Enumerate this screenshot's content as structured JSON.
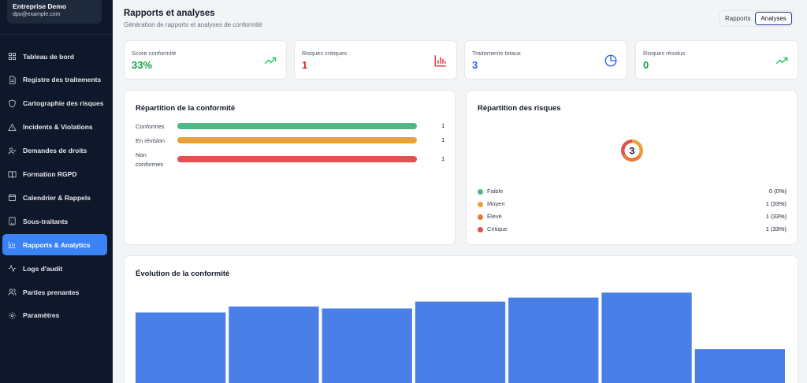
{
  "sidebar": {
    "org_name": "Entreprise Demo",
    "org_email": "dpo@example.com",
    "items": [
      {
        "label": "Tableau de bord",
        "icon": "grid-icon",
        "active": false
      },
      {
        "label": "Registre des traitements",
        "icon": "document-icon",
        "active": false
      },
      {
        "label": "Cartographie des risques",
        "icon": "shield-icon",
        "active": false
      },
      {
        "label": "Incidents & Violations",
        "icon": "warning-icon",
        "active": false
      },
      {
        "label": "Demandes de droits",
        "icon": "user-check-icon",
        "active": false
      },
      {
        "label": "Formation RGPD",
        "icon": "book-icon",
        "active": false
      },
      {
        "label": "Calendrier & Rappels",
        "icon": "calendar-icon",
        "active": false
      },
      {
        "label": "Sous-traitants",
        "icon": "building-icon",
        "active": false
      },
      {
        "label": "Rapports & Analytics",
        "icon": "bar-chart-icon",
        "active": true
      },
      {
        "label": "Logs d'audit",
        "icon": "activity-icon",
        "active": false
      },
      {
        "label": "Parties prenantes",
        "icon": "users-icon",
        "active": false
      },
      {
        "label": "Paramètres",
        "icon": "gear-icon",
        "active": false
      }
    ]
  },
  "header": {
    "title": "Rapports et analyses",
    "subtitle": "Génération de rapports et analyses de conformité",
    "tabs": [
      {
        "label": "Rapports",
        "selected": false
      },
      {
        "label": "Analyses",
        "selected": true
      }
    ]
  },
  "stats": [
    {
      "label": "Score conformité",
      "value": "33%",
      "color": "#16a34a",
      "icon": "trending-up-icon"
    },
    {
      "label": "Risques critiques",
      "value": "1",
      "color": "#dc2626",
      "icon": "bar-chart-icon"
    },
    {
      "label": "Traitements totaux",
      "value": "3",
      "color": "#2563eb",
      "icon": "pie-chart-icon"
    },
    {
      "label": "Risques résolus",
      "value": "0",
      "color": "#16a34a",
      "icon": "trending-up-icon"
    }
  ],
  "compliance": {
    "title": "Répartition de la conformité",
    "rows": [
      {
        "label": "Conformes",
        "count": "1",
        "fraction": 1.0,
        "color": "#4fb986"
      },
      {
        "label": "En révision",
        "count": "1",
        "fraction": 1.0,
        "color": "#e9a23b"
      },
      {
        "label": "Non conformes",
        "count": "1",
        "fraction": 1.0,
        "color": "#e05252"
      }
    ]
  },
  "risks": {
    "title": "Répartition des risques",
    "total": "3",
    "rows": [
      {
        "label": "Faible",
        "value": "0 (0%)",
        "count": 0,
        "color": "#4fb986"
      },
      {
        "label": "Moyen",
        "value": "1 (33%)",
        "count": 1,
        "color": "#e9a23b"
      },
      {
        "label": "Élevé",
        "value": "1 (33%)",
        "count": 1,
        "color": "#e8793b"
      },
      {
        "label": "Critique",
        "value": "1 (33%)",
        "count": 1,
        "color": "#e05252"
      }
    ]
  },
  "evolution": {
    "title": "Évolution de la conformité"
  },
  "chart_data": {
    "type": "bar",
    "values": [
      75,
      81,
      79,
      86,
      90,
      95,
      38
    ],
    "ylim": [
      0,
      100
    ],
    "color": "#4a7fe8",
    "grid": false
  }
}
